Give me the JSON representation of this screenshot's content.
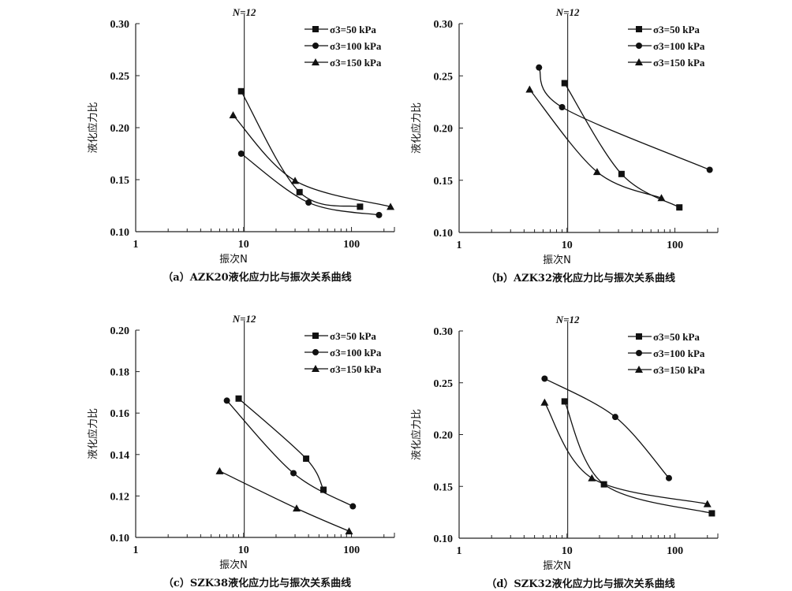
{
  "chart_data": [
    {
      "type": "line",
      "caption": "（a）AZK20液化应力比与振次关系曲线",
      "xlabel": "振次N",
      "ylabel": "液化应力比",
      "xscale": "log",
      "xlim": [
        1,
        250
      ],
      "ylim": [
        0.1,
        0.3
      ],
      "xticks": [
        "1",
        "10",
        "100"
      ],
      "yticks": [
        "0.10",
        "0.15",
        "0.20",
        "0.25",
        "0.30"
      ],
      "vline": {
        "x": 12,
        "label": "N=12"
      },
      "legend_position": "top-right",
      "series": [
        {
          "name": "σ3=50 kPa",
          "marker": "square",
          "x": [
            9.5,
            33,
            120
          ],
          "y": [
            0.235,
            0.138,
            0.124
          ]
        },
        {
          "name": "σ3=100 kPa",
          "marker": "circle",
          "x": [
            9.5,
            40,
            180
          ],
          "y": [
            0.175,
            0.128,
            0.116
          ]
        },
        {
          "name": "σ3=150 kPa",
          "marker": "triangle",
          "x": [
            8,
            30,
            230
          ],
          "y": [
            0.212,
            0.149,
            0.124
          ]
        }
      ]
    },
    {
      "type": "line",
      "caption": "（b）AZK32液化应力比与振次关系曲线",
      "xlabel": "振次N",
      "ylabel": "液化应力比",
      "xscale": "log",
      "xlim": [
        1,
        250
      ],
      "ylim": [
        0.1,
        0.3
      ],
      "xticks": [
        "1",
        "10",
        "100"
      ],
      "yticks": [
        "0.10",
        "0.15",
        "0.20",
        "0.25",
        "0.30"
      ],
      "vline": {
        "x": 12,
        "label": "N=12"
      },
      "legend_position": "top-right",
      "series": [
        {
          "name": "σ3=50 kPa",
          "marker": "square",
          "x": [
            9.5,
            32,
            110
          ],
          "y": [
            0.243,
            0.156,
            0.124
          ]
        },
        {
          "name": "σ3=100 kPa",
          "marker": "circle",
          "x": [
            5.5,
            9,
            210
          ],
          "y": [
            0.258,
            0.22,
            0.16
          ]
        },
        {
          "name": "σ3=150 kPa",
          "marker": "triangle",
          "x": [
            4.5,
            19,
            75
          ],
          "y": [
            0.237,
            0.158,
            0.133
          ]
        }
      ]
    },
    {
      "type": "line",
      "caption": "（c）SZK38液化应力比与振次关系曲线",
      "xlabel": "振次N",
      "ylabel": "液化应力比",
      "xscale": "log",
      "xlim": [
        1,
        250
      ],
      "ylim": [
        0.1,
        0.2
      ],
      "xticks": [
        "1",
        "10",
        "100"
      ],
      "yticks": [
        "0.10",
        "0.12",
        "0.14",
        "0.16",
        "0.18",
        "0.20"
      ],
      "vline": {
        "x": 12,
        "label": "N=12"
      },
      "legend_position": "top-right",
      "series": [
        {
          "name": "σ3=50 kPa",
          "marker": "square",
          "x": [
            9,
            38,
            55
          ],
          "y": [
            0.167,
            0.138,
            0.123
          ]
        },
        {
          "name": "σ3=100 kPa",
          "marker": "circle",
          "x": [
            7,
            29,
            103
          ],
          "y": [
            0.166,
            0.131,
            0.115
          ]
        },
        {
          "name": "σ3=150 kPa",
          "marker": "triangle",
          "x": [
            6,
            31,
            95
          ],
          "y": [
            0.132,
            0.114,
            0.103
          ]
        }
      ]
    },
    {
      "type": "line",
      "caption": "（d）SZK32液化应力比与振次关系曲线",
      "xlabel": "振次N",
      "ylabel": "液化应力比",
      "xscale": "log",
      "xlim": [
        1,
        250
      ],
      "ylim": [
        0.1,
        0.3
      ],
      "xticks": [
        "1",
        "10",
        "100"
      ],
      "yticks": [
        "0.10",
        "0.15",
        "0.20",
        "0.25",
        "0.30"
      ],
      "vline": {
        "x": 12,
        "label": "N=12"
      },
      "legend_position": "top-right",
      "series": [
        {
          "name": "σ3=50 kPa",
          "marker": "square",
          "x": [
            9.5,
            22,
            220
          ],
          "y": [
            0.232,
            0.152,
            0.124
          ]
        },
        {
          "name": "σ3=100 kPa",
          "marker": "circle",
          "x": [
            6.2,
            28,
            88
          ],
          "y": [
            0.254,
            0.217,
            0.158
          ]
        },
        {
          "name": "σ3=150 kPa",
          "marker": "triangle",
          "x": [
            6.2,
            17,
            200
          ],
          "y": [
            0.231,
            0.158,
            0.133
          ]
        }
      ]
    }
  ]
}
